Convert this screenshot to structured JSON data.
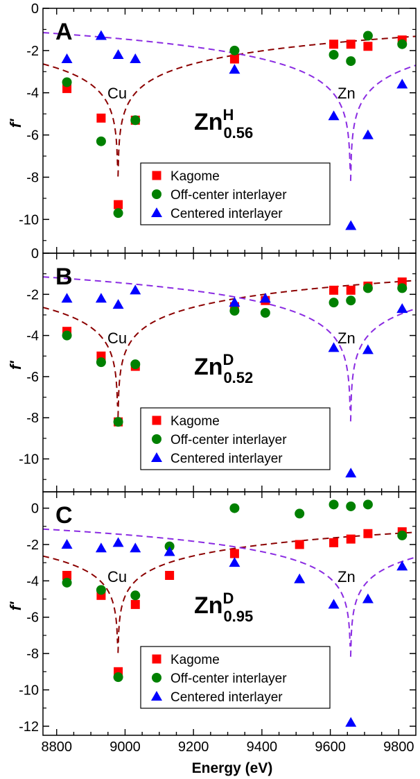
{
  "figure": {
    "xlabel": "Energy (eV)",
    "ylabel": "f'",
    "x_ticks": [
      8800,
      9000,
      9200,
      9400,
      9600,
      9800
    ],
    "xlim": [
      8760,
      9850
    ],
    "legend_labels": [
      "Kagome",
      "Off-center interlayer",
      "Centered interlayer"
    ],
    "colors": {
      "kagome": "#ff0000",
      "offcenter": "#008000",
      "centered": "#0000ff",
      "cu_curve": "#8b0000",
      "zn_curve": "#8a2be2"
    }
  },
  "chart_data": [
    {
      "type": "scatter",
      "panel": "A",
      "label_base": "Zn",
      "label_sup": "H",
      "label_sub": "0.56",
      "edge_labels": {
        "cu": "Cu",
        "zn": "Zn"
      },
      "ylim": [
        -11.6,
        0
      ],
      "y_ticks": [
        0,
        -2,
        -4,
        -6,
        -8,
        -10
      ],
      "series": [
        {
          "name": "Kagome",
          "marker": "square",
          "x": [
            8830,
            8930,
            8980,
            9030,
            9320,
            9610,
            9660,
            9710,
            9810
          ],
          "y": [
            -3.8,
            -5.2,
            -9.3,
            -5.3,
            -2.4,
            -1.7,
            -1.7,
            -1.8,
            -1.5
          ]
        },
        {
          "name": "Off-center interlayer",
          "marker": "circle",
          "x": [
            8830,
            8930,
            8980,
            9030,
            9320,
            9610,
            9660,
            9710,
            9810
          ],
          "y": [
            -3.5,
            -6.3,
            -9.7,
            -5.3,
            -2.0,
            -2.2,
            -2.5,
            -1.3,
            -1.7
          ]
        },
        {
          "name": "Centered interlayer",
          "marker": "triangle",
          "x": [
            8830,
            8930,
            8980,
            9030,
            9320,
            9610,
            9660,
            9710,
            9810
          ],
          "y": [
            -2.4,
            -1.3,
            -2.2,
            -2.4,
            -2.9,
            -5.1,
            -10.3,
            -6.0,
            -3.6
          ]
        }
      ]
    },
    {
      "type": "scatter",
      "panel": "B",
      "label_base": "Zn",
      "label_sup": "D",
      "label_sub": "0.52",
      "edge_labels": {
        "cu": "Cu",
        "zn": "Zn"
      },
      "ylim": [
        -11.6,
        0
      ],
      "y_ticks": [
        0,
        -2,
        -4,
        -6,
        -8,
        -10
      ],
      "series": [
        {
          "name": "Kagome",
          "marker": "square",
          "x": [
            8830,
            8930,
            8980,
            9030,
            9320,
            9410,
            9610,
            9660,
            9710,
            9810
          ],
          "y": [
            -3.8,
            -5.0,
            -8.2,
            -5.5,
            -2.6,
            -2.3,
            -1.8,
            -1.8,
            -1.6,
            -1.4
          ]
        },
        {
          "name": "Off-center interlayer",
          "marker": "circle",
          "x": [
            8830,
            8930,
            8980,
            9030,
            9320,
            9410,
            9610,
            9660,
            9710,
            9810
          ],
          "y": [
            -4.0,
            -5.3,
            -8.2,
            -5.4,
            -2.8,
            -2.9,
            -2.4,
            -2.3,
            -1.7,
            -1.7
          ]
        },
        {
          "name": "Centered interlayer",
          "marker": "triangle",
          "x": [
            8830,
            8930,
            8980,
            9030,
            9320,
            9410,
            9610,
            9660,
            9710,
            9810
          ],
          "y": [
            -2.2,
            -2.2,
            -2.5,
            -1.8,
            -2.4,
            -2.2,
            -4.6,
            -10.7,
            -4.7,
            -2.7
          ]
        }
      ]
    },
    {
      "type": "scatter",
      "panel": "C",
      "label_base": "Zn",
      "label_sup": "D",
      "label_sub": "0.95",
      "edge_labels": {
        "cu": "Cu",
        "zn": "Zn"
      },
      "ylim": [
        -12.5,
        0.9
      ],
      "y_ticks": [
        0,
        -2,
        -4,
        -6,
        -8,
        -10,
        -12
      ],
      "series": [
        {
          "name": "Kagome",
          "marker": "square",
          "x": [
            8830,
            8930,
            8980,
            9030,
            9130,
            9320,
            9510,
            9610,
            9660,
            9710,
            9810
          ],
          "y": [
            -3.7,
            -4.8,
            -9.0,
            -5.3,
            -3.7,
            -2.5,
            -2.0,
            -1.9,
            -1.7,
            -1.4,
            -1.3
          ]
        },
        {
          "name": "Off-center interlayer",
          "marker": "circle",
          "x": [
            8830,
            8930,
            8980,
            9030,
            9130,
            9320,
            9510,
            9610,
            9660,
            9710,
            9810
          ],
          "y": [
            -4.1,
            -4.5,
            -9.3,
            -4.8,
            -2.1,
            0.0,
            -0.3,
            0.2,
            0.1,
            0.2,
            -1.5
          ]
        },
        {
          "name": "Centered interlayer",
          "marker": "triangle",
          "x": [
            8830,
            8930,
            8980,
            9030,
            9130,
            9320,
            9510,
            9610,
            9660,
            9710,
            9810
          ],
          "y": [
            -2.0,
            -2.2,
            -1.9,
            -2.2,
            -2.4,
            -3.0,
            -3.9,
            -5.3,
            -11.8,
            -5.0,
            -3.2
          ]
        }
      ]
    }
  ]
}
